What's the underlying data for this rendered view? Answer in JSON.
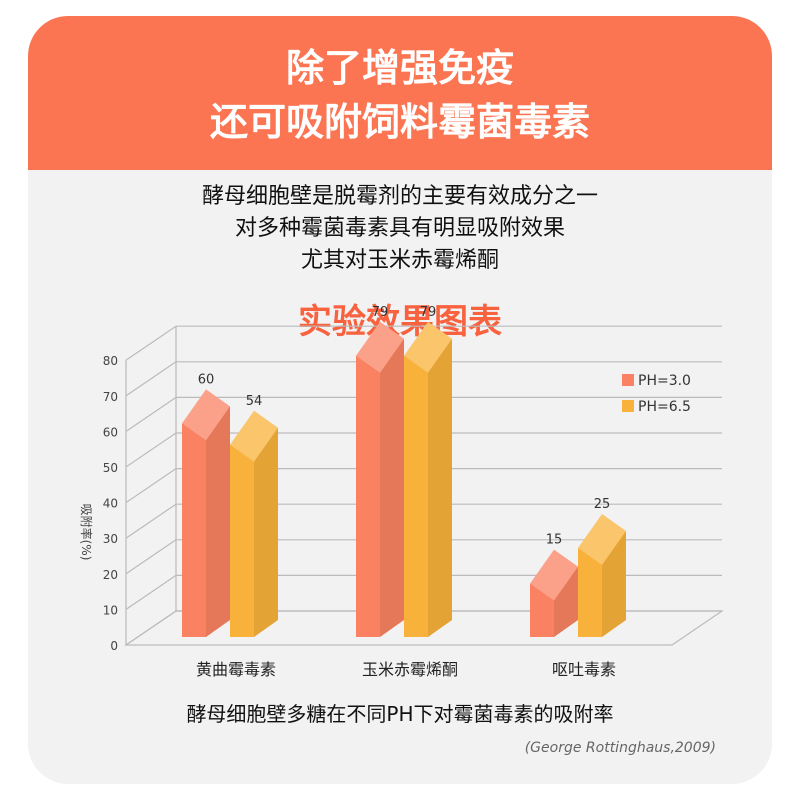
{
  "banner": {
    "line1": "除了增强免疫",
    "line2": "还可吸附饲料霉菌毒素"
  },
  "intro": {
    "line1": "酵母细胞壁是脱霉剂的主要有效成分之一",
    "line2": "对多种霉菌毒素具有明显吸附效果",
    "line3": "尤其对玉米赤霉烯酮"
  },
  "section_title": "实验效果图表",
  "caption": "酵母细胞壁多糖在不同PH下对霉菌毒素的吸附率",
  "citation": "(George Rottinghaus,2009)",
  "colors": {
    "banner": "#fb7553",
    "title_accent": "#f8623f",
    "series_ph30": "#fa8262",
    "series_ph65": "#f8b13a",
    "background": "#f2f2f2"
  },
  "chart_data": {
    "type": "bar",
    "style": "3d",
    "title": "",
    "xlabel": "",
    "ylabel": "吸附率(%)",
    "ylim": [
      0,
      80
    ],
    "yticks": [
      0,
      10,
      20,
      30,
      40,
      50,
      60,
      70,
      80
    ],
    "grid": true,
    "legend_position": "top-right",
    "categories": [
      "黄曲霉毒素",
      "玉米赤霉烯酮",
      "呕吐毒素"
    ],
    "series": [
      {
        "name": "PH=3.0",
        "values": [
          60,
          79,
          15
        ]
      },
      {
        "name": "PH=6.5",
        "values": [
          54,
          79,
          25
        ]
      }
    ]
  }
}
